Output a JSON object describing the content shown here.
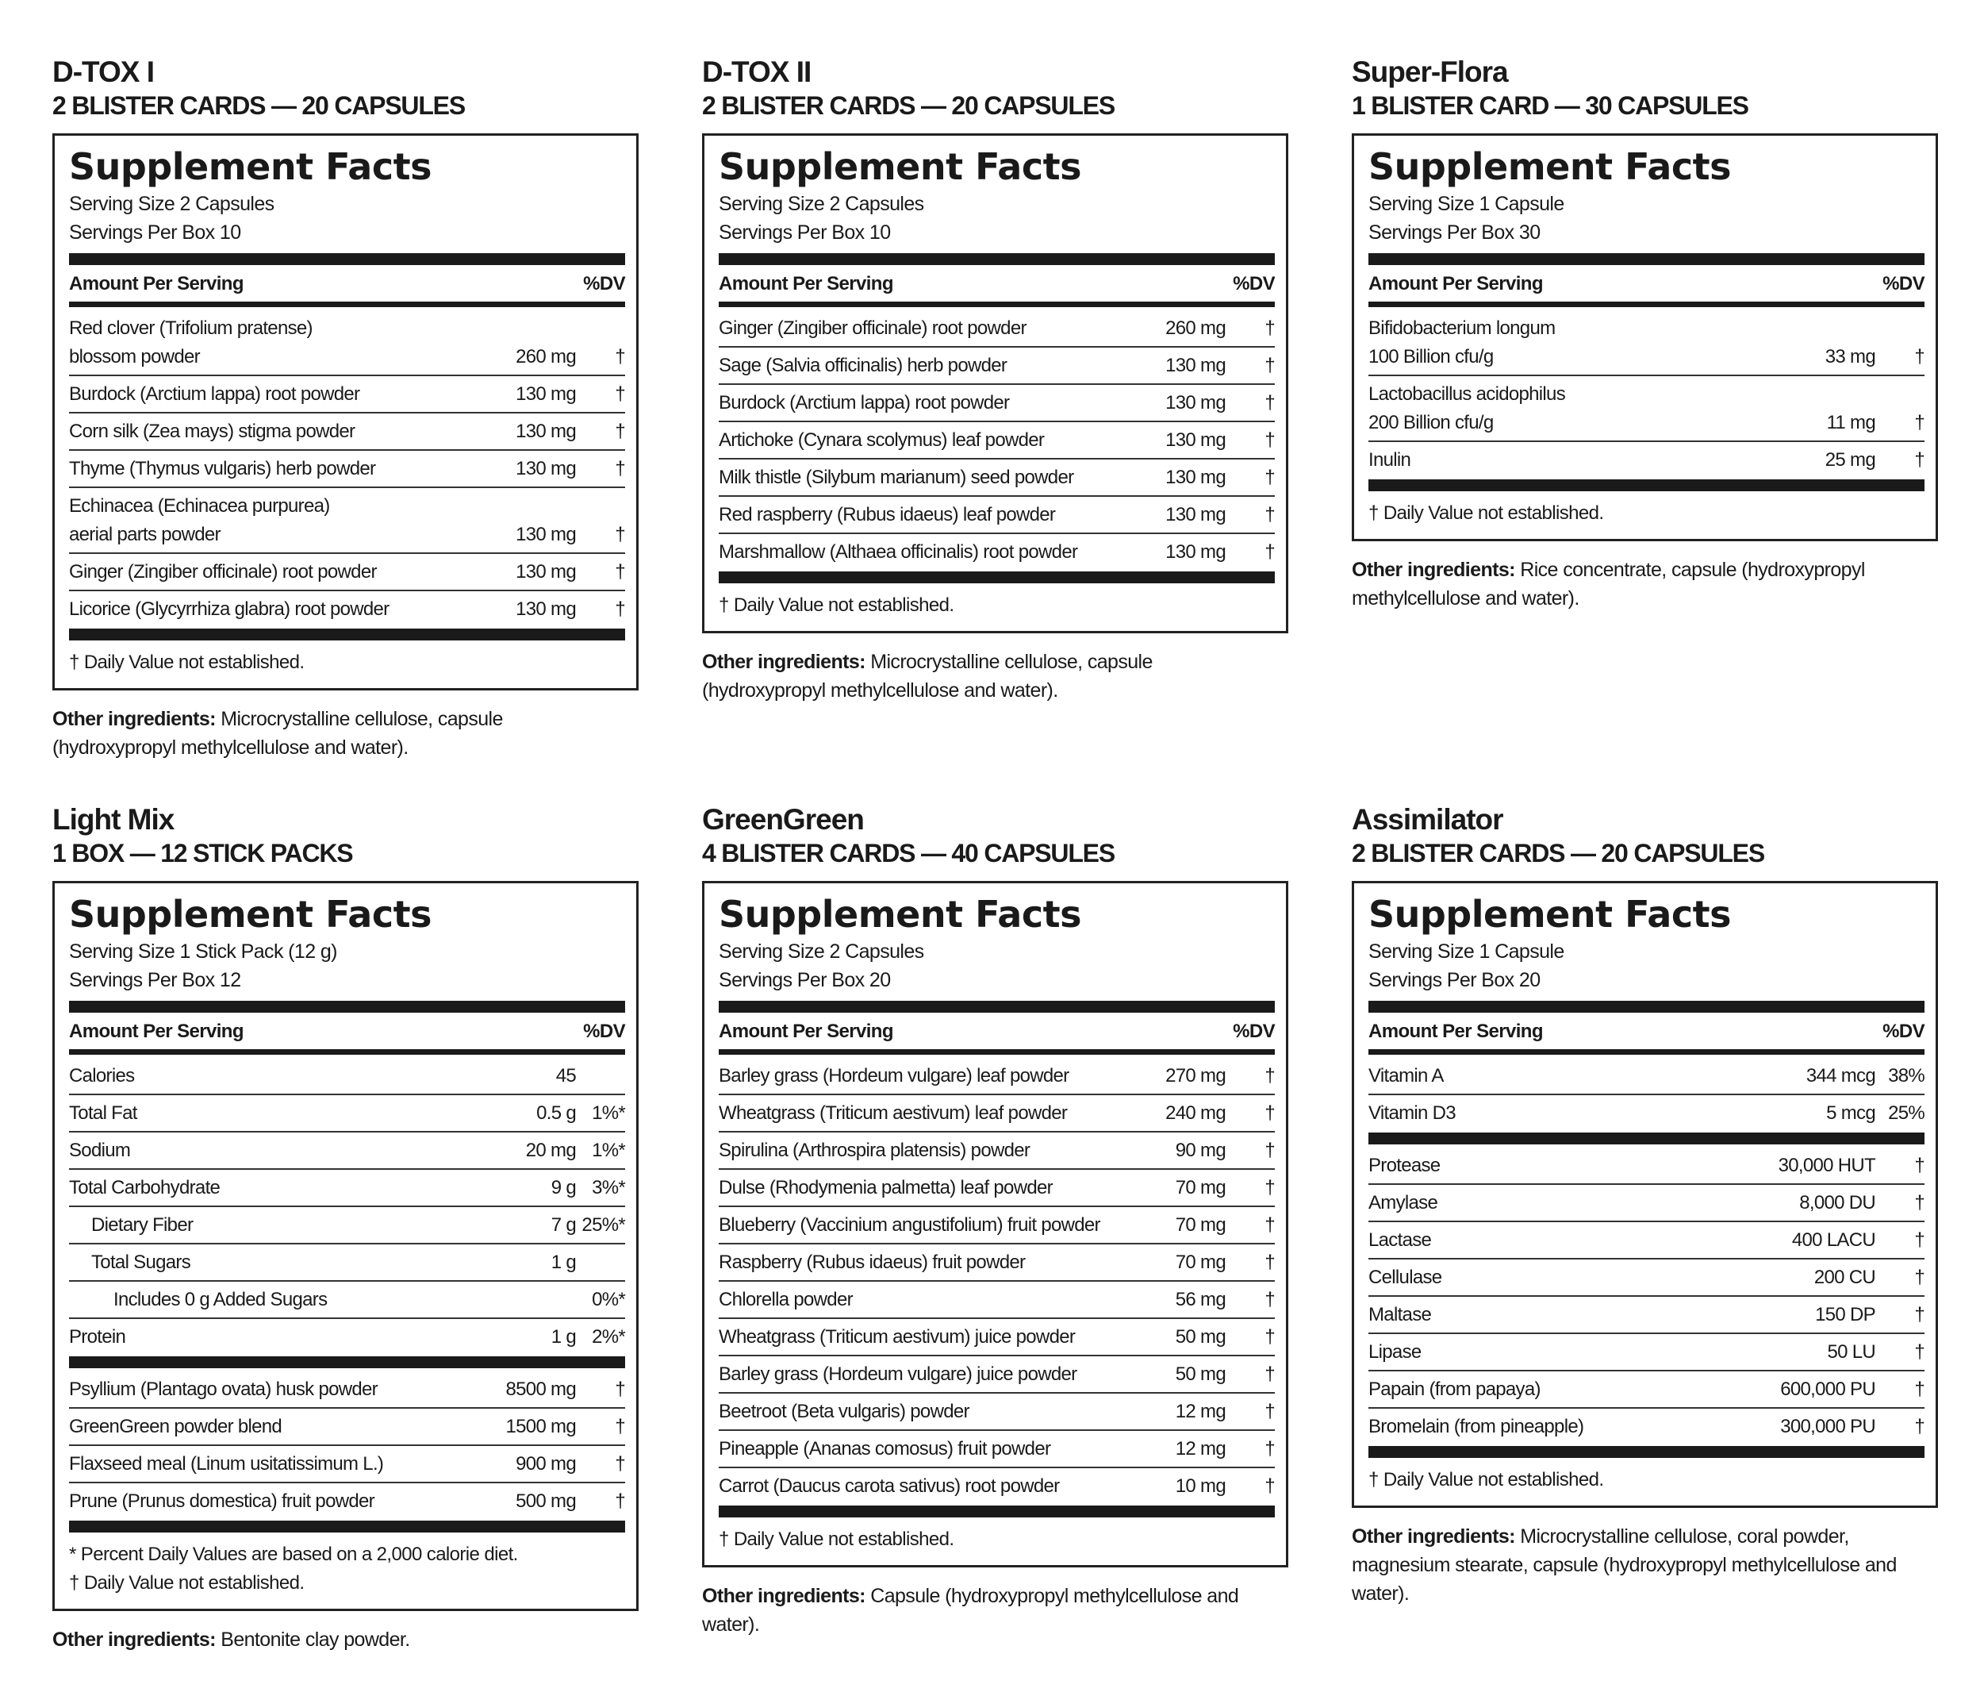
{
  "panels": [
    {
      "title": "D-TOX I",
      "subtitle": "2 BLISTER CARDS — 20 CAPSULES",
      "heading": "Supplement Facts",
      "serving_size": "Serving Size 2 Capsules",
      "servings_per": "Servings Per Box 10",
      "amount_header": "Amount Per Serving",
      "dv_header": "%DV",
      "sections": [
        [
          {
            "name": [
              "Red clover (Trifolium pratense)",
              "blossom powder"
            ],
            "amount": "260 mg",
            "dv": "†"
          },
          {
            "name": [
              "Burdock (Arctium lappa) root powder"
            ],
            "amount": "130 mg",
            "dv": "†"
          },
          {
            "name": [
              "Corn silk (Zea mays) stigma powder"
            ],
            "amount": "130 mg",
            "dv": "†"
          },
          {
            "name": [
              "Thyme (Thymus vulgaris) herb powder"
            ],
            "amount": "130 mg",
            "dv": "†"
          },
          {
            "name": [
              "Echinacea (Echinacea purpurea)",
              "aerial parts powder"
            ],
            "amount": "130 mg",
            "dv": "†"
          },
          {
            "name": [
              "Ginger (Zingiber officinale) root powder"
            ],
            "amount": "130 mg",
            "dv": "†"
          },
          {
            "name": [
              "Licorice (Glycyrrhiza glabra) root powder"
            ],
            "amount": "130 mg",
            "dv": "†"
          }
        ]
      ],
      "footnotes": [
        "† Daily Value not established."
      ],
      "other_label": "Other ingredients:",
      "other_text": "Microcrystalline cellulose, capsule (hydroxypropyl methylcellulose and water)."
    },
    {
      "title": "D-TOX II",
      "subtitle": "2 BLISTER CARDS — 20 CAPSULES",
      "heading": "Supplement Facts",
      "serving_size": "Serving Size 2 Capsules",
      "servings_per": "Servings Per Box 10",
      "amount_header": "Amount Per Serving",
      "dv_header": "%DV",
      "sections": [
        [
          {
            "name": [
              "Ginger (Zingiber officinale) root powder"
            ],
            "amount": "260 mg",
            "dv": "†"
          },
          {
            "name": [
              "Sage (Salvia officinalis) herb powder"
            ],
            "amount": "130 mg",
            "dv": "†"
          },
          {
            "name": [
              "Burdock (Arctium lappa) root powder"
            ],
            "amount": "130 mg",
            "dv": "†"
          },
          {
            "name": [
              "Artichoke (Cynara scolymus) leaf powder"
            ],
            "amount": "130 mg",
            "dv": "†"
          },
          {
            "name": [
              "Milk thistle (Silybum marianum) seed powder"
            ],
            "amount": "130 mg",
            "dv": "†"
          },
          {
            "name": [
              "Red raspberry (Rubus idaeus) leaf powder"
            ],
            "amount": "130 mg",
            "dv": "†"
          },
          {
            "name": [
              "Marshmallow (Althaea officinalis) root powder"
            ],
            "amount": "130 mg",
            "dv": "†"
          }
        ]
      ],
      "footnotes": [
        "† Daily Value not established."
      ],
      "other_label": "Other ingredients:",
      "other_text": "Microcrystalline cellulose, capsule (hydroxypropyl methylcellulose and water)."
    },
    {
      "title": "Super-Flora",
      "subtitle": "1 BLISTER CARD — 30 CAPSULES",
      "heading": "Supplement Facts",
      "serving_size": "Serving Size 1 Capsule",
      "servings_per": "Servings Per Box 30",
      "amount_header": "Amount Per Serving",
      "dv_header": "%DV",
      "sections": [
        [
          {
            "name": [
              "Bifidobacterium longum",
              "100 Billion cfu/g"
            ],
            "amount": "33 mg",
            "dv": "†"
          },
          {
            "name": [
              "Lactobacillus acidophilus",
              "200 Billion cfu/g"
            ],
            "amount": "11 mg",
            "dv": "†"
          },
          {
            "name": [
              "Inulin"
            ],
            "amount": "25 mg",
            "dv": "†"
          }
        ]
      ],
      "footnotes": [
        "† Daily Value not established."
      ],
      "other_label": "Other ingredients:",
      "other_text": "Rice concentrate, capsule (hydroxypropyl methylcellulose and water)."
    },
    {
      "title": "Light Mix",
      "subtitle": "1 BOX — 12 STICK PACKS",
      "heading": "Supplement Facts",
      "serving_size": "Serving Size 1 Stick Pack (12 g)",
      "servings_per": "Servings Per Box 12",
      "amount_header": "Amount Per Serving",
      "dv_header": "%DV",
      "sections": [
        [
          {
            "name": [
              "Calories"
            ],
            "amount": "45"
          },
          {
            "name": [
              "Total Fat"
            ],
            "amount": "0.5 g",
            "dv": "1%*"
          },
          {
            "name": [
              "Sodium"
            ],
            "amount": "20 mg",
            "dv": "1%*"
          },
          {
            "name": [
              "Total Carbohydrate"
            ],
            "amount": "9 g",
            "dv": "3%*"
          },
          {
            "name": [
              "Dietary Fiber"
            ],
            "amount": "7 g",
            "dv": "25%*"
          },
          {
            "name": [
              "Total Sugars"
            ],
            "amount": "1 g"
          },
          {
            "name": [
              "Includes  0 g Added Sugars"
            ],
            "dv": "0%*"
          },
          {
            "name": [
              "Protein"
            ],
            "amount": "1 g",
            "dv": "2%*"
          }
        ],
        [
          {
            "name": [
              "Psyllium (Plantago ovata) husk powder"
            ],
            "amount": "8500 mg",
            "dv": "†"
          },
          {
            "name": [
              "GreenGreen powder blend"
            ],
            "amount": "1500 mg",
            "dv": "†"
          },
          {
            "name": [
              "Flaxseed meal (Linum usitatissimum L.)"
            ],
            "amount": "900 mg",
            "dv": "†"
          },
          {
            "name": [
              "Prune (Prunus domestica) fruit powder"
            ],
            "amount": "500 mg",
            "dv": "†"
          }
        ]
      ],
      "footnotes": [
        "* Percent Daily Values are based on  a 2,000 calorie diet.",
        "† Daily Value not established."
      ],
      "other_label": "Other ingredients:",
      "other_text": "Bentonite clay powder."
    },
    {
      "title": "GreenGreen",
      "subtitle": "4 BLISTER CARDS — 40 CAPSULES",
      "heading": "Supplement Facts",
      "serving_size": "Serving Size 2 Capsules",
      "servings_per": "Servings Per Box 20",
      "amount_header": "Amount Per Serving",
      "dv_header": "%DV",
      "sections": [
        [
          {
            "name": [
              "Barley grass (Hordeum vulgare) leaf powder"
            ],
            "amount": "270 mg",
            "dv": "†"
          },
          {
            "name": [
              "Wheatgrass (Triticum aestivum) leaf powder"
            ],
            "amount": "240 mg",
            "dv": "†"
          },
          {
            "name": [
              "Spirulina (Arthrospira platensis) powder"
            ],
            "amount": "90 mg",
            "dv": "†"
          },
          {
            "name": [
              "Dulse (Rhodymenia palmetta) leaf powder"
            ],
            "amount": "70 mg",
            "dv": "†"
          },
          {
            "name": [
              "Blueberry (Vaccinium angustifolium) fruit powder"
            ],
            "amount": "70 mg",
            "dv": "†"
          },
          {
            "name": [
              "Raspberry (Rubus idaeus) fruit powder"
            ],
            "amount": "70 mg",
            "dv": "†"
          },
          {
            "name": [
              "Chlorella powder"
            ],
            "amount": "56 mg",
            "dv": "†"
          },
          {
            "name": [
              "Wheatgrass (Triticum aestivum) juice powder"
            ],
            "amount": "50 mg",
            "dv": "†"
          },
          {
            "name": [
              "Barley grass (Hordeum vulgare) juice powder"
            ],
            "amount": "50 mg",
            "dv": "†"
          },
          {
            "name": [
              "Beetroot (Beta vulgaris) powder"
            ],
            "amount": "12 mg",
            "dv": "†"
          },
          {
            "name": [
              "Pineapple (Ananas comosus) fruit powder"
            ],
            "amount": "12 mg",
            "dv": "†"
          },
          {
            "name": [
              "Carrot (Daucus carota sativus) root powder"
            ],
            "amount": "10 mg",
            "dv": "†"
          }
        ]
      ],
      "footnotes": [
        "† Daily Value not established."
      ],
      "other_label": "Other ingredients:",
      "other_text": "Capsule (hydroxypropyl methylcellulose and water)."
    },
    {
      "title": "Assimilator",
      "subtitle": "2 BLISTER CARDS — 20 CAPSULES",
      "heading": "Supplement Facts",
      "serving_size": "Serving Size 1 Capsule",
      "servings_per": "Servings Per Box 20",
      "amount_header": "Amount Per Serving",
      "dv_header": "%DV",
      "sections": [
        [
          {
            "name": [
              "Vitamin A"
            ],
            "amount": "344 mcg",
            "dv": "38%"
          },
          {
            "name": [
              "Vitamin D3"
            ],
            "amount": "5 mcg",
            "dv": "25%"
          }
        ],
        [
          {
            "name": [
              "Protease"
            ],
            "amount": "30,000 HUT",
            "dv": "†"
          },
          {
            "name": [
              "Amylase"
            ],
            "amount": "8,000 DU",
            "dv": "†"
          },
          {
            "name": [
              "Lactase"
            ],
            "amount": "400 LACU",
            "dv": "†"
          },
          {
            "name": [
              "Cellulase"
            ],
            "amount": "200 CU",
            "dv": "†"
          },
          {
            "name": [
              "Maltase"
            ],
            "amount": "150 DP",
            "dv": "†"
          },
          {
            "name": [
              "Lipase"
            ],
            "amount": "50 LU",
            "dv": "†"
          },
          {
            "name": [
              "Papain (from papaya)"
            ],
            "amount": "600,000 PU",
            "dv": "†"
          },
          {
            "name": [
              "Bromelain (from pineapple)"
            ],
            "amount": "300,000 PU",
            "dv": "†"
          }
        ]
      ],
      "footnotes": [
        "† Daily Value not established."
      ],
      "other_label": "Other ingredients:",
      "other_text": "Microcrystalline cellulose, coral powder, magnesium stearate, capsule (hydroxypropyl methylcellulose and water)."
    }
  ]
}
